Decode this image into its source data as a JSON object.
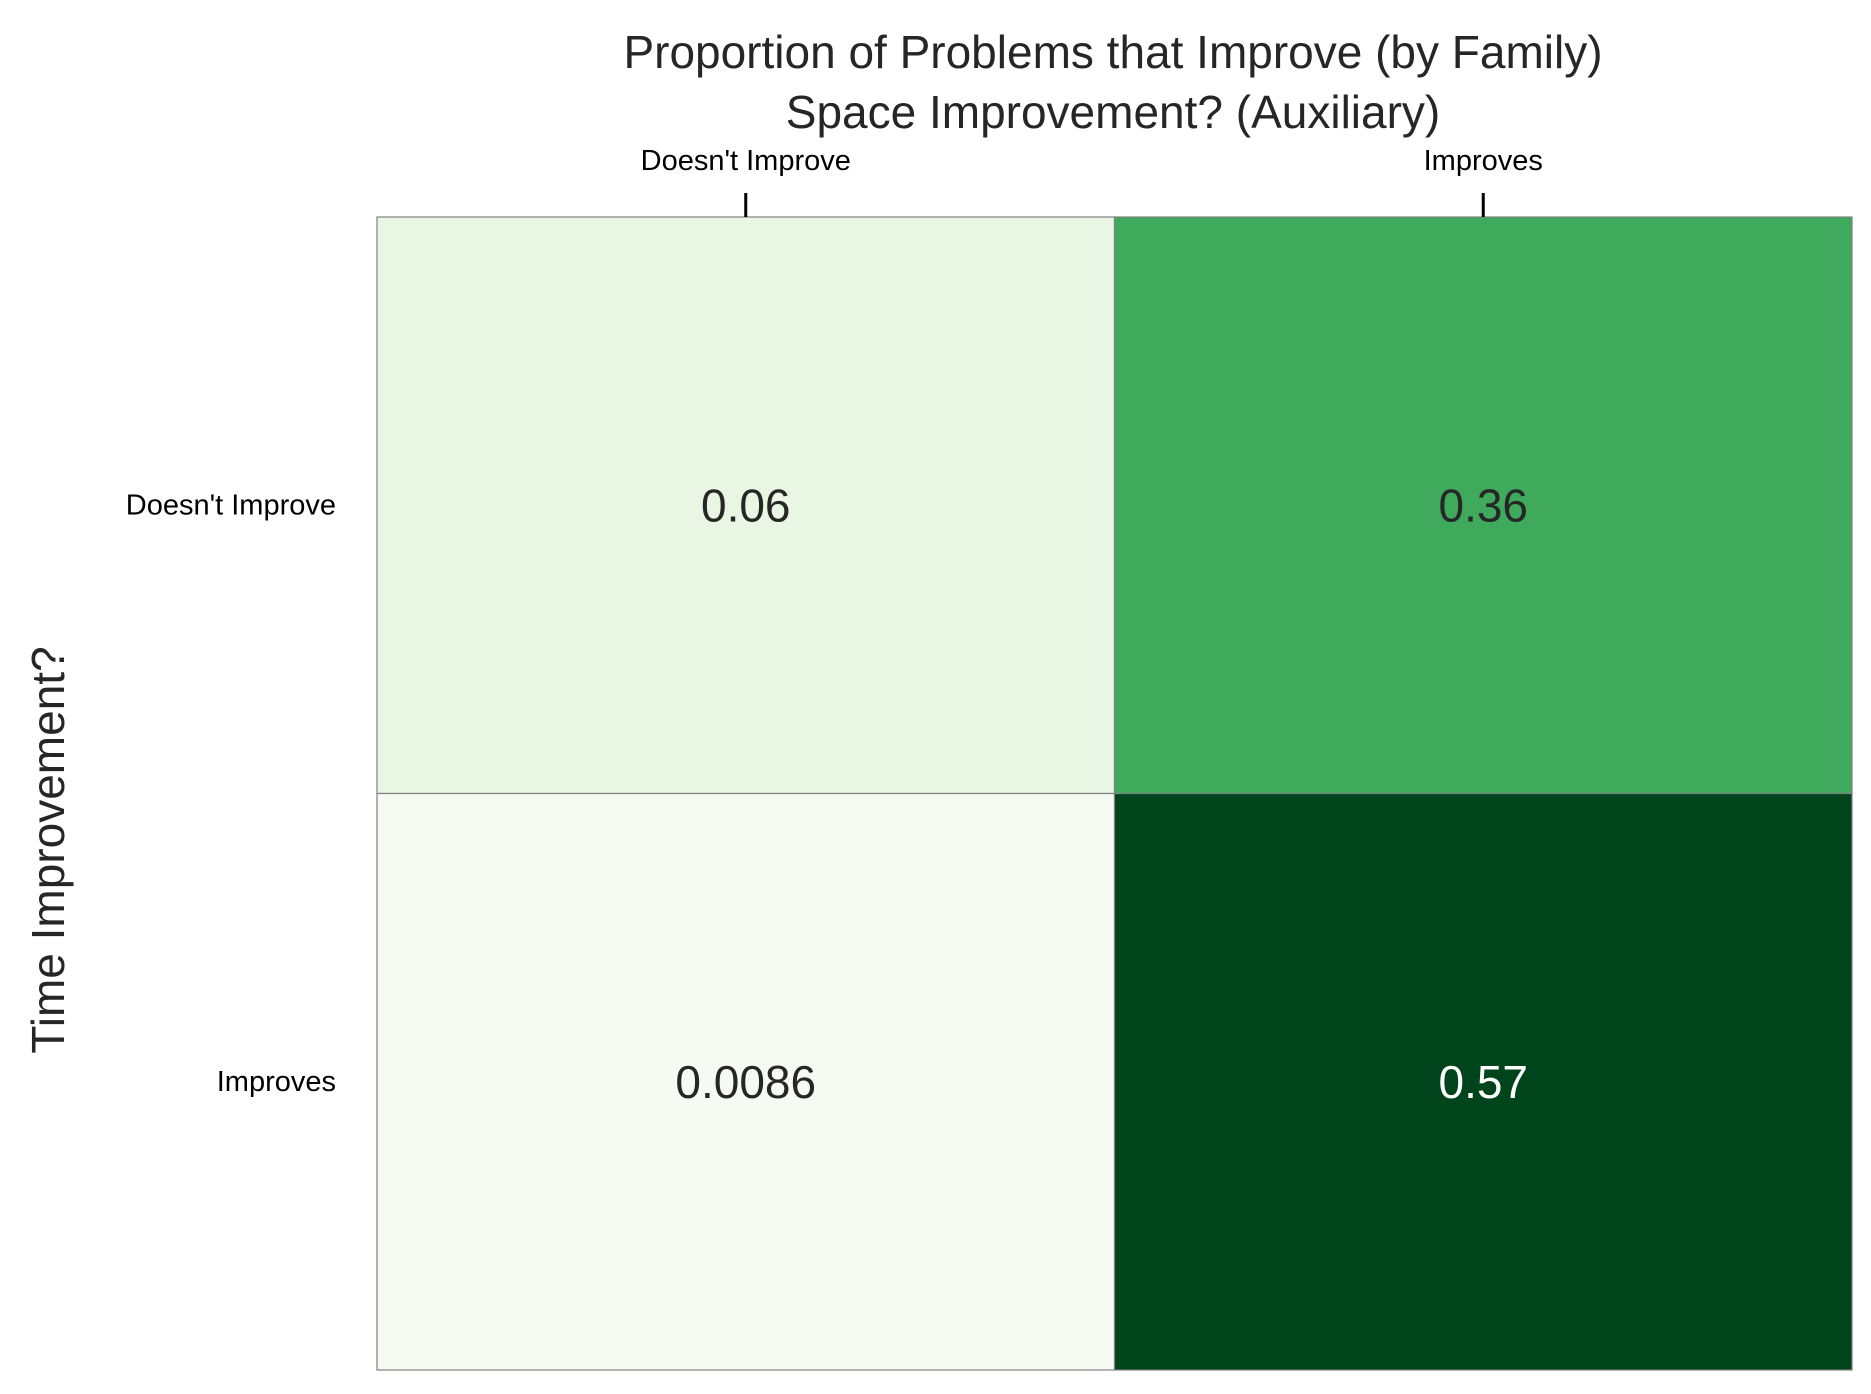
{
  "chart_data": {
    "type": "heatmap",
    "title": "Proportion of Problems that Improve (by Family)",
    "subtitle": "Space Improvement? (Auxiliary)",
    "xlabel": "Space Improvement? (Auxiliary)",
    "ylabel": "Time Improvement?",
    "x_categories": [
      "Doesn't Improve",
      "Improves"
    ],
    "y_categories": [
      "Doesn't Improve",
      "Improves"
    ],
    "x_axis_position": "top",
    "values": [
      [
        0.06,
        0.36
      ],
      [
        0.0086,
        0.57
      ]
    ],
    "value_labels": [
      [
        "0.06",
        "0.36"
      ],
      [
        "0.0086",
        "0.57"
      ]
    ],
    "colormap": "Greens",
    "color_range": [
      0,
      0.57
    ],
    "colorbar": false,
    "grid": false
  }
}
